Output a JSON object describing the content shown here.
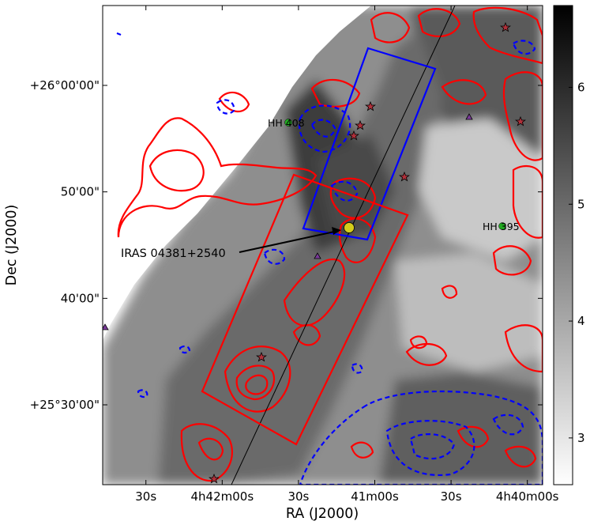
{
  "chart_data": {
    "type": "heatmap",
    "xlabel": "RA (J2000)",
    "ylabel": "Dec (J2000)",
    "x_ticks": [
      {
        "label": "30s",
        "ra_sec": 90
      },
      {
        "label": "4h42m00s",
        "ra_sec": 120
      },
      {
        "label": "30s",
        "ra_sec": 150
      },
      {
        "label": "41m00s",
        "ra_sec": 180
      },
      {
        "label": "30s",
        "ra_sec": 210
      },
      {
        "label": "4h40m00s",
        "ra_sec": 240
      }
    ],
    "y_ticks": [
      {
        "label": "+25°30'00\"",
        "dec_arcmin": 30
      },
      {
        "label": "40'00\"",
        "dec_arcmin": 40
      },
      {
        "label": "50'00\"",
        "dec_arcmin": 50
      },
      {
        "label": "+26°00'00\"",
        "dec_arcmin": 60
      }
    ],
    "xlim_ra_sec": [
      73,
      246
    ],
    "ylim_dec_arcmin": [
      22.5,
      67.5
    ],
    "colorbar": {
      "min": 2.6,
      "max": 6.7,
      "ticks": [
        3,
        4,
        5,
        6
      ],
      "colormap": "gray_r"
    },
    "annotations": [
      {
        "text": "IRAS 04381+2540",
        "ra_sec": 192,
        "dec_arcmin": 46.5
      },
      {
        "text": "HH 408",
        "ra_sec": 170,
        "dec_arcmin": 56.2
      },
      {
        "text": "HH 395",
        "ra_sec": 240,
        "dec_arcmin": 46.6
      }
    ],
    "colors": {
      "red_contours": "#ff0000",
      "blue_contours": "#0000ff",
      "source_marker": "#d4cc1a",
      "hh_marker": "#22aa22"
    }
  }
}
